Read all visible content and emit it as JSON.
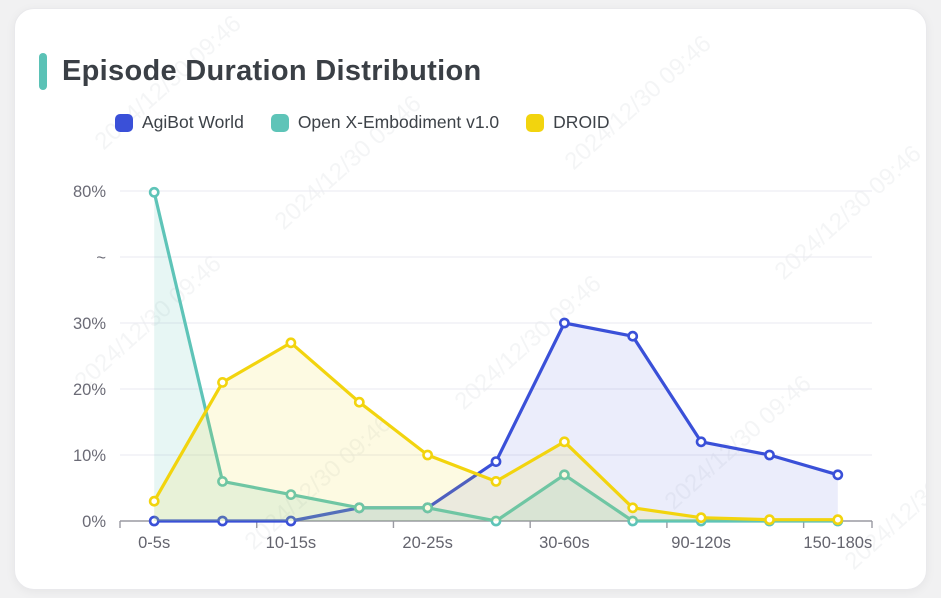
{
  "header": {
    "title": "Episode Duration Distribution",
    "accent_color": "#5bc2b6"
  },
  "legend": [
    {
      "label": "AgiBot World",
      "color": "#3a50d8"
    },
    {
      "label": "Open X-Embodiment v1.0",
      "color": "#5ec4b8"
    },
    {
      "label": "DROID",
      "color": "#f2d40e"
    }
  ],
  "watermark": {
    "text": "2024/12/30 09:46"
  },
  "chart_data": {
    "type": "line",
    "title": "Episode Duration Distribution",
    "categories": [
      "0-5s",
      "",
      "10-15s",
      "",
      "20-25s",
      "",
      "30-60s",
      "",
      "90-120s",
      "",
      "150-180s"
    ],
    "series": [
      {
        "name": "AgiBot World",
        "color": "#3a50d8",
        "area_opacity": 0.1,
        "values": [
          0,
          0,
          0,
          2,
          2,
          9,
          30,
          28,
          12,
          10,
          7
        ]
      },
      {
        "name": "Open X-Embodiment v1.0",
        "color": "#5ec4b8",
        "area_opacity": 0.15,
        "values": [
          79.5,
          6,
          4,
          2,
          2,
          0,
          7,
          0,
          0,
          0,
          0
        ]
      },
      {
        "name": "DROID",
        "color": "#f2d40e",
        "area_opacity": 0.12,
        "values": [
          3,
          21,
          27,
          18,
          10,
          6,
          12,
          2,
          0.5,
          0.2,
          0.2
        ]
      }
    ],
    "y_axis": {
      "unit": "%",
      "tick_labels": [
        "0%",
        "10%",
        "20%",
        "30%",
        "~",
        "80%"
      ],
      "tick_values": [
        0,
        10,
        20,
        30,
        55,
        80
      ],
      "break": {
        "from": 30,
        "to": 80,
        "symbol": "~"
      },
      "range_lower": [
        0,
        30
      ],
      "range_upper": [
        30,
        80
      ]
    },
    "grid": true,
    "legend_position": "top-left",
    "markers": "hollow-circle"
  }
}
